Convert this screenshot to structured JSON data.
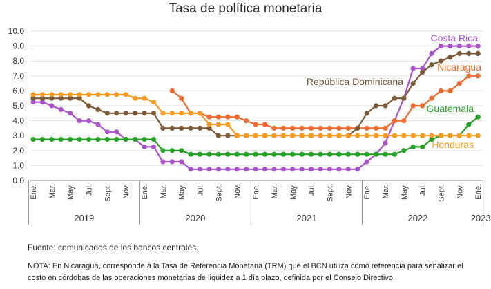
{
  "chart_data": {
    "type": "line",
    "title": "Tasa de política monetaria",
    "xlabel": "",
    "ylabel": "",
    "ylim": [
      0,
      10
    ],
    "yticks": [
      "0.0",
      "1.0",
      "2.0",
      "3.0",
      "4.0",
      "5.0",
      "6.0",
      "7.0",
      "8.0",
      "9.0",
      "10.0"
    ],
    "month_ticks": [
      "Ene.",
      "Mar.",
      "May.",
      "Jul.",
      "Sept.",
      "Nov.",
      "Ene.",
      "Mar.",
      "May.",
      "Jul.",
      "Sept.",
      "Nov.",
      "Ene.",
      "Mar.",
      "May.",
      "Jul.",
      "Sept.",
      "Nov.",
      "Ene.",
      "Mar.",
      "May.",
      "Jul.",
      "Sept.",
      "Nov.",
      "Ene."
    ],
    "year_labels": [
      "2019",
      "2020",
      "2021",
      "2022",
      "2023"
    ],
    "x_months": [
      "2019-01",
      "2019-02",
      "2019-03",
      "2019-04",
      "2019-05",
      "2019-06",
      "2019-07",
      "2019-08",
      "2019-09",
      "2019-10",
      "2019-11",
      "2019-12",
      "2020-01",
      "2020-02",
      "2020-03",
      "2020-04",
      "2020-05",
      "2020-06",
      "2020-07",
      "2020-08",
      "2020-09",
      "2020-10",
      "2020-11",
      "2020-12",
      "2021-01",
      "2021-02",
      "2021-03",
      "2021-04",
      "2021-05",
      "2021-06",
      "2021-07",
      "2021-08",
      "2021-09",
      "2021-10",
      "2021-11",
      "2021-12",
      "2022-01",
      "2022-02",
      "2022-03",
      "2022-04",
      "2022-05",
      "2022-06",
      "2022-07",
      "2022-08",
      "2022-09",
      "2022-10",
      "2022-11",
      "2022-12",
      "2023-01"
    ],
    "series": [
      {
        "name": "Costa Rica",
        "color": "#a855c9",
        "values": [
          5.25,
          5.25,
          5.0,
          4.75,
          4.5,
          4.0,
          4.0,
          3.75,
          3.25,
          3.25,
          2.75,
          2.75,
          2.25,
          2.25,
          1.25,
          1.25,
          1.25,
          0.75,
          0.75,
          0.75,
          0.75,
          0.75,
          0.75,
          0.75,
          0.75,
          0.75,
          0.75,
          0.75,
          0.75,
          0.75,
          0.75,
          0.75,
          0.75,
          0.75,
          0.75,
          0.75,
          1.25,
          1.75,
          2.5,
          4.0,
          5.5,
          7.5,
          7.5,
          8.5,
          9.0,
          9.0,
          9.0,
          9.0,
          9.0
        ]
      },
      {
        "name": "Nicaragua",
        "color": "#ef6a2f",
        "values": [
          null,
          null,
          null,
          null,
          null,
          null,
          null,
          null,
          null,
          null,
          null,
          null,
          null,
          null,
          null,
          6.0,
          5.5,
          4.5,
          4.5,
          4.25,
          4.25,
          4.25,
          4.25,
          4.0,
          3.75,
          3.75,
          3.5,
          3.5,
          3.5,
          3.5,
          3.5,
          3.5,
          3.5,
          3.5,
          3.5,
          3.5,
          3.5,
          3.5,
          3.5,
          4.0,
          4.0,
          5.0,
          5.0,
          5.5,
          6.0,
          6.0,
          6.5,
          7.0,
          7.0
        ]
      },
      {
        "name": "República Dominicana",
        "color": "#7a5a38",
        "values": [
          5.5,
          5.5,
          5.5,
          5.5,
          5.5,
          5.5,
          5.0,
          4.75,
          4.5,
          4.5,
          4.5,
          4.5,
          4.5,
          4.5,
          3.5,
          3.5,
          3.5,
          3.5,
          3.5,
          3.5,
          3.0,
          3.0,
          3.0,
          3.0,
          3.0,
          3.0,
          3.0,
          3.0,
          3.0,
          3.0,
          3.0,
          3.0,
          3.0,
          3.0,
          3.0,
          3.5,
          4.5,
          5.0,
          5.0,
          5.5,
          5.5,
          6.5,
          7.25,
          7.75,
          8.0,
          8.25,
          8.5,
          8.5,
          8.5
        ]
      },
      {
        "name": "Guatemala",
        "color": "#26a026",
        "values": [
          2.75,
          2.75,
          2.75,
          2.75,
          2.75,
          2.75,
          2.75,
          2.75,
          2.75,
          2.75,
          2.75,
          2.75,
          2.75,
          2.75,
          2.0,
          2.0,
          2.0,
          1.75,
          1.75,
          1.75,
          1.75,
          1.75,
          1.75,
          1.75,
          1.75,
          1.75,
          1.75,
          1.75,
          1.75,
          1.75,
          1.75,
          1.75,
          1.75,
          1.75,
          1.75,
          1.75,
          1.75,
          1.75,
          1.75,
          1.75,
          2.0,
          2.25,
          2.25,
          2.75,
          3.0,
          3.0,
          3.0,
          3.75,
          4.25
        ]
      },
      {
        "name": "Honduras",
        "color": "#f59a23",
        "values": [
          5.75,
          5.75,
          5.75,
          5.75,
          5.75,
          5.75,
          5.75,
          5.75,
          5.75,
          5.75,
          5.75,
          5.5,
          5.5,
          5.25,
          4.5,
          4.5,
          4.5,
          4.5,
          4.5,
          3.75,
          3.75,
          3.75,
          3.0,
          3.0,
          3.0,
          3.0,
          3.0,
          3.0,
          3.0,
          3.0,
          3.0,
          3.0,
          3.0,
          3.0,
          3.0,
          3.0,
          3.0,
          3.0,
          3.0,
          3.0,
          3.0,
          3.0,
          3.0,
          3.0,
          3.0,
          3.0,
          3.0,
          3.0,
          3.0
        ]
      }
    ]
  },
  "footer": {
    "source": "Fuente: comunicados de los bancos centrales.",
    "note_line1": "NOTA: En Nicaragua, corresponde a la Tasa de Referencia Monetaria (TRM) que el BCN utiliza como referencia para señalizar el",
    "note_line2": "costo en córdobas de las operaciones monetarias de liquidez a 1 día plazo, definida por el Consejo Directivo."
  }
}
